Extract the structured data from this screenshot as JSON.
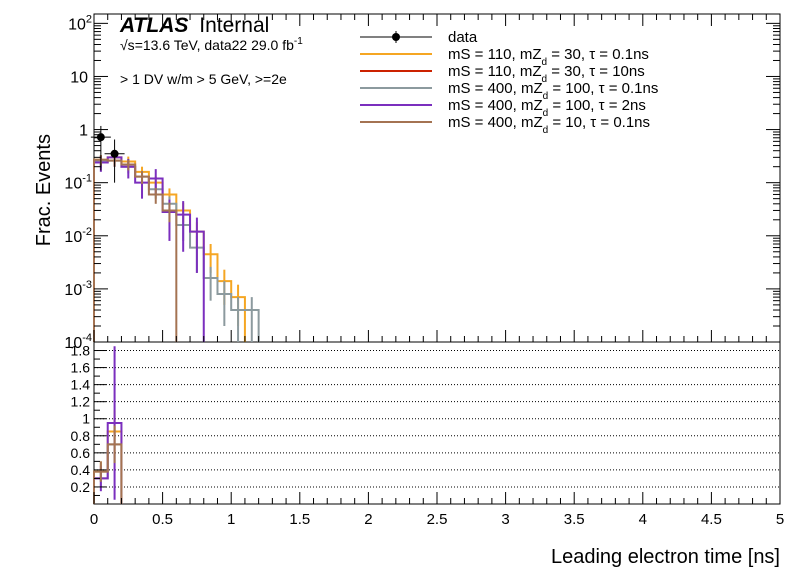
{
  "header": {
    "atlas": "ATLAS",
    "internal": "Internal",
    "energy_prefix": "√s",
    "energy": "=13.6 TeV, data22 29.0 fb",
    "energy_sup": "-1",
    "selection": "> 1 DV w/m > 5 GeV, >=2e"
  },
  "chart_data": {
    "type": "line",
    "title": "",
    "xlabel": "Leading electron time [ns]",
    "ylabel": "Frac. Events",
    "xlim": [
      0,
      5
    ],
    "ylim": [
      0.0001,
      150
    ],
    "yscale": "log",
    "ratio_ylim": [
      0,
      1.9
    ],
    "grid_ratio": true,
    "legend_position": "top-center",
    "x_ticks": [
      "0",
      "0.5",
      "1",
      "1.5",
      "2",
      "2.5",
      "3",
      "3.5",
      "4",
      "4.5",
      "5"
    ],
    "y_ticks": [
      {
        "value": 100,
        "label": "10",
        "exp": "2"
      },
      {
        "value": 10,
        "label": "10",
        "exp": ""
      },
      {
        "value": 1,
        "label": "1",
        "exp": ""
      },
      {
        "value": 0.1,
        "label": "10",
        "exp": "-1"
      },
      {
        "value": 0.01,
        "label": "10",
        "exp": "-2"
      },
      {
        "value": 0.001,
        "label": "10",
        "exp": "-3"
      },
      {
        "value": 0.0001,
        "label": "10",
        "exp": "-4"
      }
    ],
    "ratio_ticks": [
      "0.2",
      "0.4",
      "0.6",
      "0.8",
      "1",
      "1.2",
      "1.4",
      "1.6",
      "1.8"
    ],
    "data": {
      "name": "data",
      "x": [
        0.05,
        0.15
      ],
      "y": [
        0.72,
        0.35
      ],
      "err_low": [
        0.55,
        0.25
      ],
      "err_high": [
        0.45,
        0.3
      ]
    },
    "series": [
      {
        "name": "mS = 110, mZ_d = 30, τ = 0.1ns",
        "label_main": "mS = 110, mZ",
        "label_sub": "d",
        "label_end": " = 30, τ = 0.1ns",
        "color": "#f5a623",
        "edges": [
          0,
          0.1,
          0.2,
          0.3,
          0.4,
          0.5,
          0.6,
          0.7,
          0.8,
          0.9,
          1.0,
          1.1
        ],
        "values": [
          0.27,
          0.3,
          0.25,
          0.16,
          0.1,
          0.06,
          0.03,
          0.012,
          0.0045,
          0.0014,
          0.0007
        ],
        "err": [
          0.06,
          0.06,
          0.06,
          0.04,
          0.03,
          0.018,
          0.012,
          0.006,
          0.0025,
          0.0009,
          0.0005
        ],
        "ratio_edges": [
          0,
          0.1,
          0.2
        ],
        "ratio_values": [
          0.38,
          0.85
        ],
        "ratio_err": [
          0.12,
          0.25
        ]
      },
      {
        "name": "mS = 110, mZ_d = 30, τ = 10ns",
        "label_main": "mS = 110, mZ",
        "label_sub": "d",
        "label_end": " = 30, τ = 10ns",
        "color": "#cc2200",
        "edges": [],
        "values": [],
        "err": [],
        "ratio_edges": [],
        "ratio_values": [],
        "ratio_err": []
      },
      {
        "name": "mS = 400, mZ_d = 100, τ = 0.1ns",
        "label_main": "mS = 400, mZ",
        "label_sub": "d",
        "label_end": " = 100, τ = 0.1ns",
        "color": "#8c9a9e",
        "edges": [
          0,
          0.1,
          0.2,
          0.3,
          0.4,
          0.5,
          0.6,
          0.7,
          0.8,
          0.9,
          1.0,
          1.1,
          1.2
        ],
        "values": [
          0.25,
          0.26,
          0.2,
          0.13,
          0.075,
          0.04,
          0.016,
          0.006,
          0.0016,
          0.0008,
          0.0004,
          0.0004
        ],
        "err": [
          0.06,
          0.06,
          0.05,
          0.035,
          0.025,
          0.015,
          0.008,
          0.004,
          0.001,
          0.0006,
          0.0003,
          0.0003
        ],
        "ratio_edges": [
          0,
          0.1,
          0.2
        ],
        "ratio_values": [
          0.3,
          0.7
        ],
        "ratio_err": [
          0.1,
          0.22
        ]
      },
      {
        "name": "mS = 400, mZ_d = 100, τ = 2ns",
        "label_main": "mS = 400, mZ",
        "label_sub": "d",
        "label_end": " = 100, τ = 2ns",
        "color": "#7b2fbe",
        "edges": [
          0,
          0.1,
          0.2,
          0.3,
          0.4,
          0.5,
          0.6,
          0.7,
          0.8
        ],
        "values": [
          0.24,
          0.3,
          0.2,
          0.1,
          0.12,
          0.028,
          0.025,
          0.012
        ],
        "err": [
          0.08,
          0.1,
          0.08,
          0.05,
          0.06,
          0.02,
          0.02,
          0.01
        ],
        "ratio_edges": [
          0,
          0.1,
          0.2
        ],
        "ratio_values": [
          0.3,
          0.95
        ],
        "ratio_err": [
          0.15,
          0.9
        ]
      },
      {
        "name": "mS = 400, mZ_d = 10, τ = 0.1ns",
        "label_main": "mS = 400, mZ",
        "label_sub": "d",
        "label_end": " = 10, τ = 0.1ns",
        "color": "#a47352",
        "edges": [
          0,
          0.1,
          0.2,
          0.3,
          0.4,
          0.5,
          0.6
        ],
        "values": [
          0.27,
          0.26,
          0.22,
          0.13,
          0.06,
          0.03
        ],
        "err": [
          0.06,
          0.06,
          0.05,
          0.035,
          0.02,
          0.012
        ],
        "ratio_edges": [
          0,
          0.1,
          0.2
        ],
        "ratio_values": [
          0.38,
          0.7
        ],
        "ratio_err": [
          0.12,
          0.22
        ]
      }
    ]
  }
}
